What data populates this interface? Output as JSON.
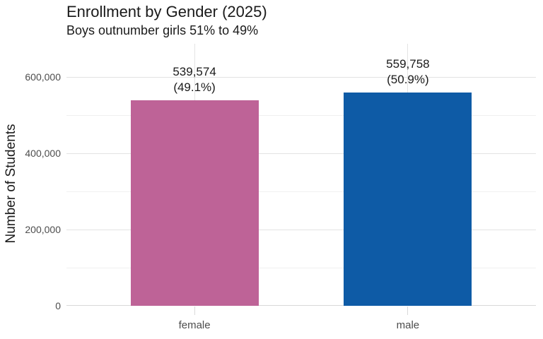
{
  "chart_data": {
    "type": "bar",
    "title": "Enrollment by Gender (2025)",
    "subtitle": "Boys outnumber girls 51% to 49%",
    "ylabel": "Number of Students",
    "xlabel": "",
    "categories": [
      "female",
      "male"
    ],
    "values": [
      539574,
      559758
    ],
    "value_labels": [
      "539,574",
      "559,758"
    ],
    "percent_labels": [
      "(49.1%)",
      "(50.9%)"
    ],
    "bar_colors": [
      "#be6397",
      "#0e5ba6"
    ],
    "ylim": [
      0,
      687000
    ],
    "yticks": [
      0,
      200000,
      400000,
      600000
    ],
    "ytick_labels": [
      "0",
      "200,000",
      "400,000",
      "600,000"
    ],
    "yticks_minor": [
      100000,
      300000,
      500000
    ],
    "grid": "horizontal major+minor, vertical at category centers",
    "legend": "none",
    "palette": {
      "text": "#1a1a1a",
      "axis_text": "#4d4d4d",
      "grid_major": "#e3e3e3",
      "grid_minor": "#f0f0f0",
      "axis_line": "#d9d9d9",
      "tick_mark": "#d9d9d9",
      "background": "#ffffff"
    }
  }
}
